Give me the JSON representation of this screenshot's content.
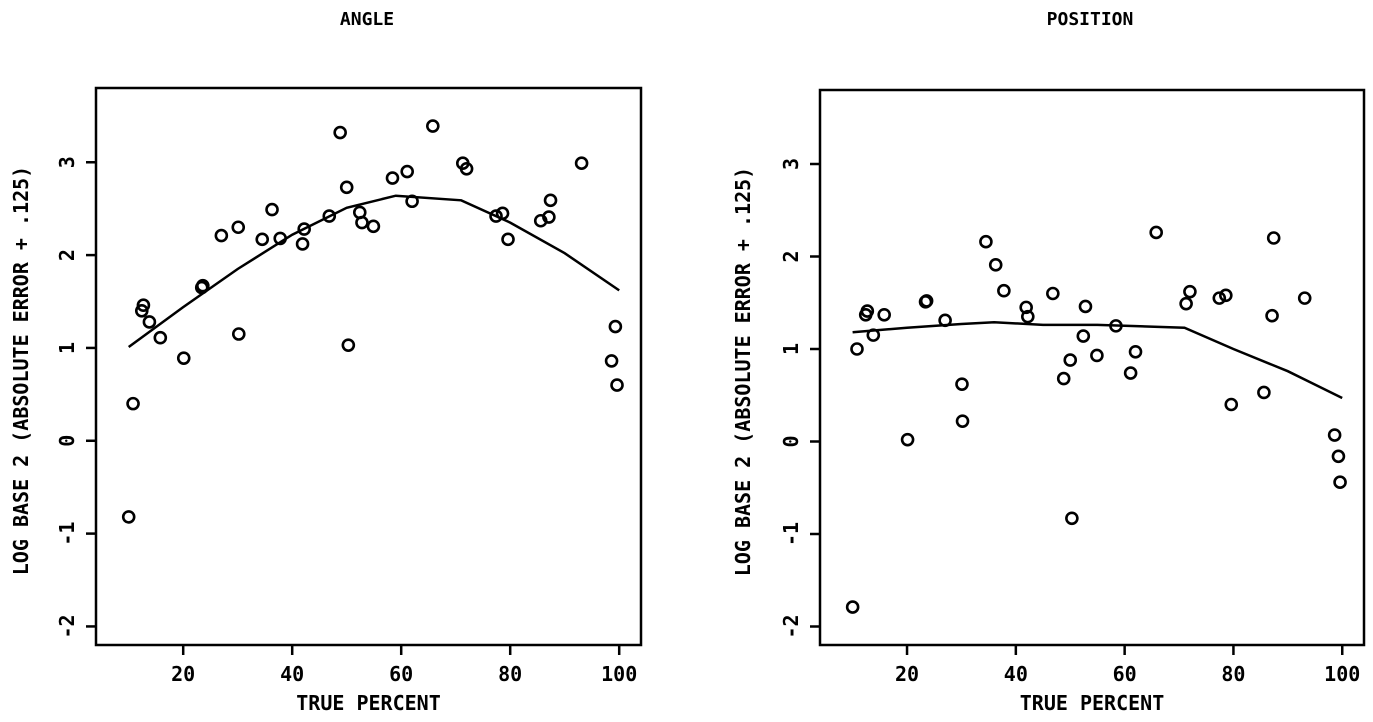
{
  "chart_data": [
    {
      "type": "scatter",
      "title": "ANGLE",
      "xlabel": "TRUE PERCENT",
      "ylabel": "LOG BASE 2 (ABSOLUTE ERROR + .125)",
      "xlim": [
        4,
        104
      ],
      "ylim": [
        -2.2,
        3.8
      ],
      "xticks": [
        20,
        40,
        60,
        80,
        100
      ],
      "yticks": [
        -2,
        -1,
        0,
        1,
        2,
        3
      ],
      "grid": false,
      "points": [
        {
          "x": 10.0,
          "y": -0.82
        },
        {
          "x": 10.8,
          "y": 0.4
        },
        {
          "x": 12.4,
          "y": 1.4
        },
        {
          "x": 12.7,
          "y": 1.46
        },
        {
          "x": 13.8,
          "y": 1.28
        },
        {
          "x": 15.8,
          "y": 1.11
        },
        {
          "x": 20.1,
          "y": 0.89
        },
        {
          "x": 23.4,
          "y": 1.65
        },
        {
          "x": 23.6,
          "y": 1.67
        },
        {
          "x": 27.0,
          "y": 2.21
        },
        {
          "x": 30.1,
          "y": 2.3
        },
        {
          "x": 30.2,
          "y": 1.15
        },
        {
          "x": 34.5,
          "y": 2.17
        },
        {
          "x": 36.3,
          "y": 2.49
        },
        {
          "x": 37.8,
          "y": 2.18
        },
        {
          "x": 41.9,
          "y": 2.12
        },
        {
          "x": 42.2,
          "y": 2.28
        },
        {
          "x": 46.8,
          "y": 2.42
        },
        {
          "x": 48.8,
          "y": 3.32
        },
        {
          "x": 50.0,
          "y": 2.73
        },
        {
          "x": 50.3,
          "y": 1.03
        },
        {
          "x": 52.4,
          "y": 2.46
        },
        {
          "x": 52.8,
          "y": 2.35
        },
        {
          "x": 54.9,
          "y": 2.31
        },
        {
          "x": 58.4,
          "y": 2.83
        },
        {
          "x": 61.1,
          "y": 2.9
        },
        {
          "x": 62.0,
          "y": 2.58
        },
        {
          "x": 65.8,
          "y": 3.39
        },
        {
          "x": 71.3,
          "y": 2.99
        },
        {
          "x": 72.0,
          "y": 2.93
        },
        {
          "x": 77.4,
          "y": 2.42
        },
        {
          "x": 78.6,
          "y": 2.45
        },
        {
          "x": 79.6,
          "y": 2.17
        },
        {
          "x": 85.6,
          "y": 2.37
        },
        {
          "x": 87.1,
          "y": 2.41
        },
        {
          "x": 87.4,
          "y": 2.59
        },
        {
          "x": 93.1,
          "y": 2.99
        },
        {
          "x": 98.6,
          "y": 0.86
        },
        {
          "x": 99.3,
          "y": 1.23
        },
        {
          "x": 99.6,
          "y": 0.6
        }
      ],
      "fit_line": [
        {
          "x": 10,
          "y": 1.01
        },
        {
          "x": 20,
          "y": 1.44
        },
        {
          "x": 30,
          "y": 1.85
        },
        {
          "x": 40,
          "y": 2.22
        },
        {
          "x": 50,
          "y": 2.51
        },
        {
          "x": 59,
          "y": 2.64
        },
        {
          "x": 71,
          "y": 2.59
        },
        {
          "x": 80,
          "y": 2.35
        },
        {
          "x": 90,
          "y": 2.02
        },
        {
          "x": 100,
          "y": 1.62
        }
      ]
    },
    {
      "type": "scatter",
      "title": "POSITION",
      "xlabel": "TRUE PERCENT",
      "ylabel": "LOG BASE 2 (ABSOLUTE ERROR + .125)",
      "xlim": [
        4,
        104
      ],
      "ylim": [
        -2.2,
        3.8
      ],
      "xticks": [
        20,
        40,
        60,
        80,
        100
      ],
      "yticks": [
        -2,
        -1,
        0,
        1,
        2,
        3
      ],
      "grid": false,
      "points": [
        {
          "x": 10.0,
          "y": -1.79
        },
        {
          "x": 10.8,
          "y": 1.0
        },
        {
          "x": 12.4,
          "y": 1.37
        },
        {
          "x": 12.7,
          "y": 1.41
        },
        {
          "x": 13.8,
          "y": 1.15
        },
        {
          "x": 15.8,
          "y": 1.37
        },
        {
          "x": 20.1,
          "y": 0.02
        },
        {
          "x": 23.4,
          "y": 1.51
        },
        {
          "x": 23.6,
          "y": 1.52
        },
        {
          "x": 27.0,
          "y": 1.31
        },
        {
          "x": 30.1,
          "y": 0.62
        },
        {
          "x": 30.2,
          "y": 0.22
        },
        {
          "x": 34.5,
          "y": 2.16
        },
        {
          "x": 36.3,
          "y": 1.91
        },
        {
          "x": 37.8,
          "y": 1.63
        },
        {
          "x": 41.9,
          "y": 1.45
        },
        {
          "x": 42.2,
          "y": 1.35
        },
        {
          "x": 46.8,
          "y": 1.6
        },
        {
          "x": 48.8,
          "y": 0.68
        },
        {
          "x": 50.0,
          "y": 0.88
        },
        {
          "x": 50.3,
          "y": -0.83
        },
        {
          "x": 52.4,
          "y": 1.14
        },
        {
          "x": 52.8,
          "y": 1.46
        },
        {
          "x": 54.9,
          "y": 0.93
        },
        {
          "x": 58.4,
          "y": 1.25
        },
        {
          "x": 61.1,
          "y": 0.74
        },
        {
          "x": 62.0,
          "y": 0.97
        },
        {
          "x": 65.8,
          "y": 2.26
        },
        {
          "x": 71.3,
          "y": 1.49
        },
        {
          "x": 72.0,
          "y": 1.62
        },
        {
          "x": 77.4,
          "y": 1.55
        },
        {
          "x": 78.6,
          "y": 1.58
        },
        {
          "x": 79.6,
          "y": 0.4
        },
        {
          "x": 85.6,
          "y": 0.53
        },
        {
          "x": 87.1,
          "y": 1.36
        },
        {
          "x": 87.4,
          "y": 2.2
        },
        {
          "x": 93.1,
          "y": 1.55
        },
        {
          "x": 98.6,
          "y": 0.07
        },
        {
          "x": 99.3,
          "y": -0.16
        },
        {
          "x": 99.6,
          "y": -0.44
        }
      ],
      "fit_line": [
        {
          "x": 10,
          "y": 1.18
        },
        {
          "x": 20,
          "y": 1.23
        },
        {
          "x": 30,
          "y": 1.27
        },
        {
          "x": 36,
          "y": 1.29
        },
        {
          "x": 45,
          "y": 1.26
        },
        {
          "x": 55,
          "y": 1.26
        },
        {
          "x": 71,
          "y": 1.23
        },
        {
          "x": 80,
          "y": 1.0
        },
        {
          "x": 90,
          "y": 0.76
        },
        {
          "x": 100,
          "y": 0.47
        }
      ]
    }
  ]
}
